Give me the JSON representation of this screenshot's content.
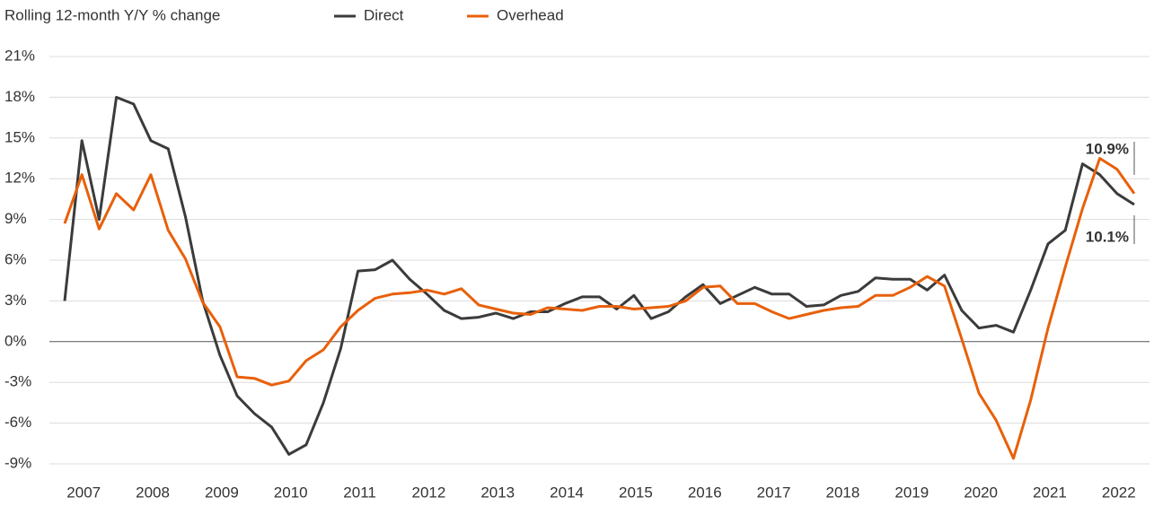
{
  "chart_data": {
    "type": "line",
    "title": "Rolling 12-month Y/Y % change",
    "categories": [
      null,
      "2007",
      null,
      null,
      null,
      "2008",
      null,
      null,
      null,
      "2009",
      null,
      null,
      null,
      "2010",
      null,
      null,
      null,
      "2011",
      null,
      null,
      null,
      "2012",
      null,
      null,
      null,
      "2013",
      null,
      null,
      null,
      "2014",
      null,
      null,
      null,
      "2015",
      null,
      null,
      null,
      "2016",
      null,
      null,
      null,
      "2017",
      null,
      null,
      null,
      "2018",
      null,
      null,
      null,
      "2019",
      null,
      null,
      null,
      "2020",
      null,
      null,
      null,
      "2021",
      null,
      null,
      null,
      "2022",
      null
    ],
    "series": [
      {
        "name": "Direct",
        "color": "#3b3b3b",
        "values": [
          3.0,
          14.8,
          9.0,
          18.0,
          17.5,
          14.8,
          14.2,
          9.2,
          3.0,
          -1.0,
          -4.0,
          -5.3,
          -6.3,
          -8.3,
          -7.6,
          -4.5,
          -0.5,
          5.2,
          5.3,
          6.0,
          4.6,
          3.5,
          2.3,
          1.7,
          1.8,
          2.1,
          1.7,
          2.2,
          2.2,
          2.8,
          3.3,
          3.3,
          2.4,
          3.4,
          1.7,
          2.2,
          3.3,
          4.2,
          2.8,
          3.4,
          4.0,
          3.5,
          3.5,
          2.6,
          2.7,
          3.4,
          3.7,
          4.7,
          4.6,
          4.6,
          3.8,
          4.9,
          2.3,
          1.0,
          1.2,
          0.7,
          3.8,
          7.2,
          8.2,
          13.1,
          12.3,
          10.9,
          10.1
        ]
      },
      {
        "name": "Overhead",
        "color": "#e8600a",
        "values": [
          8.7,
          12.3,
          8.3,
          10.9,
          9.7,
          12.3,
          8.2,
          6.1,
          2.9,
          1.1,
          -2.6,
          -2.7,
          -3.2,
          -2.9,
          -1.4,
          -0.6,
          1.1,
          2.3,
          3.2,
          3.5,
          3.6,
          3.8,
          3.5,
          3.9,
          2.7,
          2.4,
          2.1,
          2.0,
          2.5,
          2.4,
          2.3,
          2.6,
          2.6,
          2.4,
          2.5,
          2.6,
          3.0,
          4.0,
          4.1,
          2.8,
          2.8,
          2.2,
          1.7,
          2.0,
          2.3,
          2.5,
          2.6,
          3.4,
          3.4,
          4.0,
          4.8,
          4.1,
          0.2,
          -3.8,
          -5.8,
          -8.6,
          -4.3,
          1.0,
          5.5,
          9.8,
          13.5,
          12.7,
          10.9
        ]
      }
    ],
    "annotations": [
      "10.9%",
      "10.1%"
    ],
    "ylim": [
      -9,
      21
    ],
    "yticks": [
      {
        "value": -9,
        "label": "-9%"
      },
      {
        "value": -6,
        "label": "-6%"
      },
      {
        "value": -3,
        "label": "-3%"
      },
      {
        "value": 0,
        "label": "0%"
      },
      {
        "value": 3,
        "label": "3%"
      },
      {
        "value": 6,
        "label": "6%"
      },
      {
        "value": 9,
        "label": "9%"
      },
      {
        "value": 12,
        "label": "12%"
      },
      {
        "value": 15,
        "label": "15%"
      },
      {
        "value": 18,
        "label": "18%"
      },
      {
        "value": 21,
        "label": "21%"
      }
    ],
    "grid": true
  }
}
